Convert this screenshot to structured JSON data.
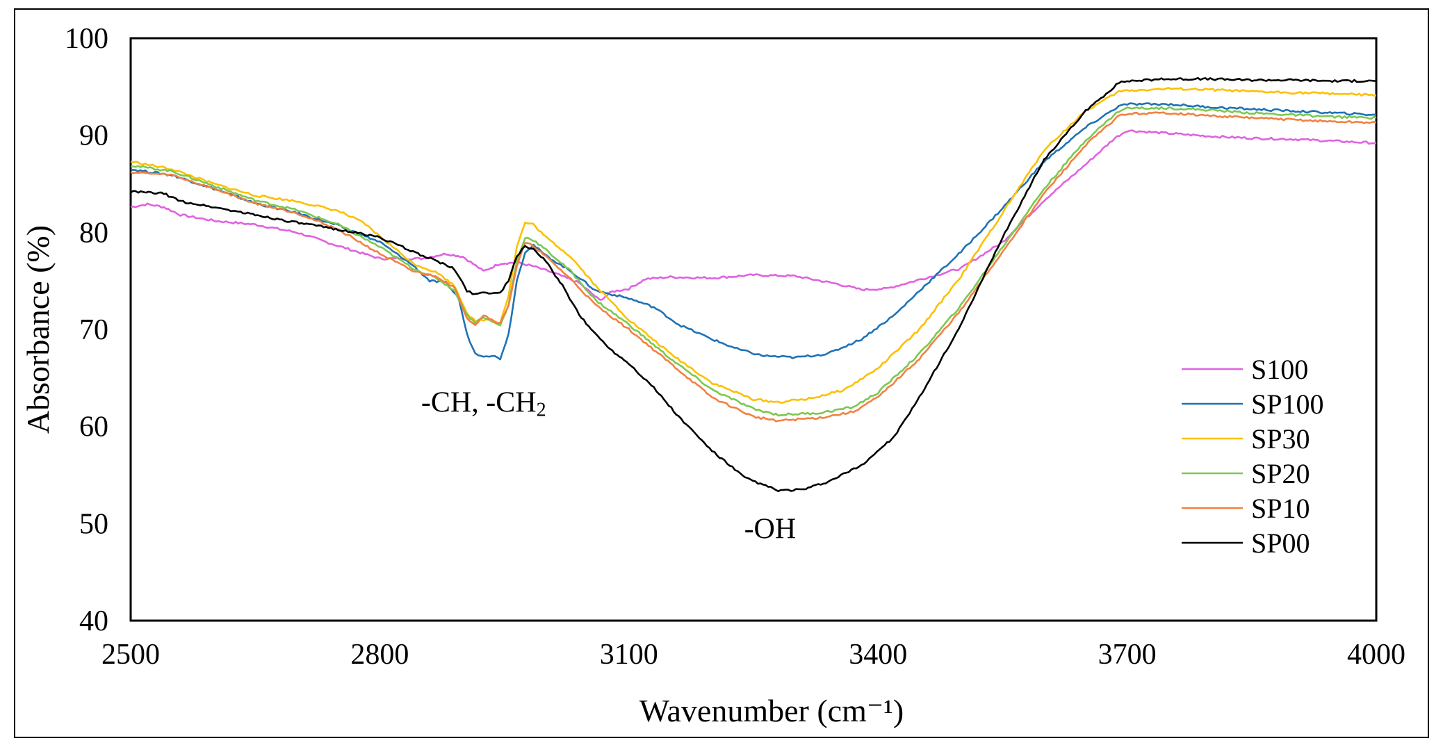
{
  "chart_data": {
    "type": "line",
    "title": "",
    "xlabel": "Wavenumber (cm⁻¹)",
    "ylabel": "Absorbance (%)",
    "xlim": [
      2500,
      4000
    ],
    "ylim": [
      40,
      100
    ],
    "xticks": [
      "2500",
      "2800",
      "3100",
      "3400",
      "3700",
      "4000"
    ],
    "yticks": [
      "40",
      "50",
      "60",
      "70",
      "80",
      "90",
      "100"
    ],
    "legend_position": "right",
    "annotations": [
      {
        "text": "-CH, -CH",
        "sub": "2",
        "x": 2925,
        "y": 61.5
      },
      {
        "text": "-OH",
        "x": 3270,
        "y": 48.5
      }
    ],
    "series": [
      {
        "name": "S100",
        "color": "#e062e0",
        "points": [
          [
            2500,
            82.6
          ],
          [
            2520,
            82.9
          ],
          [
            2540,
            82.6
          ],
          [
            2560,
            81.8
          ],
          [
            2600,
            81.2
          ],
          [
            2650,
            80.8
          ],
          [
            2700,
            80.0
          ],
          [
            2750,
            78.6
          ],
          [
            2800,
            77.3
          ],
          [
            2850,
            77.3
          ],
          [
            2880,
            77.8
          ],
          [
            2900,
            77.5
          ],
          [
            2925,
            76.0
          ],
          [
            2945,
            76.8
          ],
          [
            2965,
            76.9
          ],
          [
            2985,
            76.5
          ],
          [
            3010,
            75.8
          ],
          [
            3040,
            74.8
          ],
          [
            3065,
            73.0
          ],
          [
            3080,
            73.9
          ],
          [
            3100,
            74.2
          ],
          [
            3120,
            75.2
          ],
          [
            3150,
            75.4
          ],
          [
            3200,
            75.3
          ],
          [
            3250,
            75.6
          ],
          [
            3300,
            75.5
          ],
          [
            3350,
            74.7
          ],
          [
            3380,
            74.1
          ],
          [
            3410,
            74.2
          ],
          [
            3440,
            74.9
          ],
          [
            3500,
            76.3
          ],
          [
            3550,
            79.0
          ],
          [
            3600,
            83.3
          ],
          [
            3650,
            87.0
          ],
          [
            3685,
            89.7
          ],
          [
            3700,
            90.5
          ],
          [
            3750,
            90.2
          ],
          [
            3800,
            89.9
          ],
          [
            3850,
            89.7
          ],
          [
            3900,
            89.6
          ],
          [
            3950,
            89.4
          ],
          [
            4000,
            89.2
          ]
        ]
      },
      {
        "name": "SP100",
        "color": "#1f72b5",
        "points": [
          [
            2500,
            86.5
          ],
          [
            2550,
            85.9
          ],
          [
            2600,
            84.5
          ],
          [
            2650,
            83.0
          ],
          [
            2700,
            82.0
          ],
          [
            2750,
            80.7
          ],
          [
            2800,
            79.0
          ],
          [
            2840,
            76.6
          ],
          [
            2860,
            75.0
          ],
          [
            2880,
            74.8
          ],
          [
            2895,
            73.2
          ],
          [
            2905,
            69.5
          ],
          [
            2915,
            67.5
          ],
          [
            2925,
            67.3
          ],
          [
            2935,
            67.3
          ],
          [
            2945,
            67.0
          ],
          [
            2955,
            69.5
          ],
          [
            2965,
            75.0
          ],
          [
            2975,
            78.0
          ],
          [
            2985,
            78.7
          ],
          [
            3000,
            77.6
          ],
          [
            3030,
            76.0
          ],
          [
            3060,
            74.0
          ],
          [
            3080,
            73.6
          ],
          [
            3100,
            73.2
          ],
          [
            3130,
            72.3
          ],
          [
            3160,
            70.5
          ],
          [
            3200,
            69.0
          ],
          [
            3230,
            68.0
          ],
          [
            3260,
            67.3
          ],
          [
            3300,
            67.1
          ],
          [
            3340,
            67.5
          ],
          [
            3380,
            69.0
          ],
          [
            3420,
            71.5
          ],
          [
            3450,
            74.0
          ],
          [
            3500,
            78.0
          ],
          [
            3550,
            82.5
          ],
          [
            3600,
            87.3
          ],
          [
            3650,
            90.8
          ],
          [
            3690,
            93.0
          ],
          [
            3700,
            93.2
          ],
          [
            3750,
            93.2
          ],
          [
            3800,
            92.9
          ],
          [
            3850,
            92.7
          ],
          [
            3900,
            92.5
          ],
          [
            3950,
            92.3
          ],
          [
            4000,
            92.1
          ]
        ]
      },
      {
        "name": "SP30",
        "color": "#fcc000",
        "points": [
          [
            2500,
            87.3
          ],
          [
            2550,
            86.5
          ],
          [
            2600,
            85.0
          ],
          [
            2650,
            83.8
          ],
          [
            2700,
            83.2
          ],
          [
            2750,
            82.2
          ],
          [
            2780,
            81.0
          ],
          [
            2800,
            79.6
          ],
          [
            2840,
            76.8
          ],
          [
            2870,
            75.8
          ],
          [
            2890,
            74.5
          ],
          [
            2905,
            71.7
          ],
          [
            2915,
            70.8
          ],
          [
            2925,
            71.0
          ],
          [
            2935,
            71.0
          ],
          [
            2945,
            70.7
          ],
          [
            2955,
            73.5
          ],
          [
            2965,
            78.5
          ],
          [
            2975,
            81.0
          ],
          [
            2985,
            80.8
          ],
          [
            3000,
            79.5
          ],
          [
            3030,
            77.5
          ],
          [
            3060,
            74.5
          ],
          [
            3100,
            71.0
          ],
          [
            3150,
            67.5
          ],
          [
            3200,
            64.5
          ],
          [
            3250,
            62.8
          ],
          [
            3280,
            62.5
          ],
          [
            3320,
            62.9
          ],
          [
            3360,
            63.8
          ],
          [
            3400,
            66.0
          ],
          [
            3450,
            70.0
          ],
          [
            3500,
            75.5
          ],
          [
            3550,
            82.0
          ],
          [
            3600,
            88.5
          ],
          [
            3650,
            92.5
          ],
          [
            3690,
            94.5
          ],
          [
            3700,
            94.6
          ],
          [
            3750,
            94.8
          ],
          [
            3800,
            94.7
          ],
          [
            3850,
            94.5
          ],
          [
            3900,
            94.4
          ],
          [
            3950,
            94.3
          ],
          [
            4000,
            94.1
          ]
        ]
      },
      {
        "name": "SP20",
        "color": "#7bc850",
        "points": [
          [
            2500,
            86.9
          ],
          [
            2550,
            86.3
          ],
          [
            2600,
            84.8
          ],
          [
            2650,
            83.3
          ],
          [
            2700,
            82.3
          ],
          [
            2750,
            80.8
          ],
          [
            2800,
            78.5
          ],
          [
            2840,
            76.3
          ],
          [
            2870,
            75.2
          ],
          [
            2890,
            74.0
          ],
          [
            2905,
            71.5
          ],
          [
            2915,
            70.7
          ],
          [
            2925,
            71.3
          ],
          [
            2935,
            70.8
          ],
          [
            2945,
            70.4
          ],
          [
            2955,
            72.5
          ],
          [
            2965,
            77.0
          ],
          [
            2975,
            79.5
          ],
          [
            2985,
            79.2
          ],
          [
            3000,
            78.2
          ],
          [
            3030,
            76.0
          ],
          [
            3060,
            73.0
          ],
          [
            3100,
            70.5
          ],
          [
            3150,
            67.0
          ],
          [
            3200,
            63.8
          ],
          [
            3250,
            61.8
          ],
          [
            3280,
            61.2
          ],
          [
            3330,
            61.4
          ],
          [
            3370,
            62.0
          ],
          [
            3400,
            63.5
          ],
          [
            3450,
            67.5
          ],
          [
            3500,
            72.5
          ],
          [
            3550,
            78.5
          ],
          [
            3600,
            84.5
          ],
          [
            3650,
            89.5
          ],
          [
            3690,
            92.5
          ],
          [
            3700,
            92.8
          ],
          [
            3750,
            92.8
          ],
          [
            3800,
            92.6
          ],
          [
            3850,
            92.3
          ],
          [
            3900,
            92.1
          ],
          [
            3950,
            91.9
          ],
          [
            4000,
            91.8
          ]
        ]
      },
      {
        "name": "SP10",
        "color": "#f28141",
        "points": [
          [
            2500,
            86.2
          ],
          [
            2550,
            85.9
          ],
          [
            2600,
            84.5
          ],
          [
            2650,
            83.0
          ],
          [
            2700,
            82.0
          ],
          [
            2750,
            80.3
          ],
          [
            2800,
            77.8
          ],
          [
            2840,
            76.0
          ],
          [
            2870,
            75.4
          ],
          [
            2890,
            74.3
          ],
          [
            2905,
            71.2
          ],
          [
            2915,
            70.5
          ],
          [
            2925,
            71.5
          ],
          [
            2935,
            71.0
          ],
          [
            2945,
            70.6
          ],
          [
            2955,
            72.5
          ],
          [
            2965,
            76.5
          ],
          [
            2975,
            78.9
          ],
          [
            2985,
            78.6
          ],
          [
            3000,
            77.5
          ],
          [
            3030,
            75.2
          ],
          [
            3060,
            72.5
          ],
          [
            3100,
            70.0
          ],
          [
            3150,
            66.5
          ],
          [
            3200,
            63.0
          ],
          [
            3250,
            61.0
          ],
          [
            3280,
            60.6
          ],
          [
            3330,
            60.9
          ],
          [
            3370,
            61.5
          ],
          [
            3400,
            63.0
          ],
          [
            3450,
            67.0
          ],
          [
            3500,
            72.0
          ],
          [
            3550,
            78.0
          ],
          [
            3600,
            84.0
          ],
          [
            3650,
            89.0
          ],
          [
            3690,
            92.0
          ],
          [
            3700,
            92.2
          ],
          [
            3750,
            92.3
          ],
          [
            3800,
            92.0
          ],
          [
            3850,
            91.8
          ],
          [
            3900,
            91.6
          ],
          [
            3950,
            91.4
          ],
          [
            4000,
            91.3
          ]
        ]
      },
      {
        "name": "SP00",
        "color": "#000000",
        "points": [
          [
            2500,
            84.2
          ],
          [
            2540,
            84.0
          ],
          [
            2560,
            83.2
          ],
          [
            2600,
            82.6
          ],
          [
            2650,
            81.8
          ],
          [
            2700,
            81.0
          ],
          [
            2750,
            80.3
          ],
          [
            2800,
            79.5
          ],
          [
            2840,
            78.0
          ],
          [
            2870,
            77.0
          ],
          [
            2890,
            76.2
          ],
          [
            2905,
            74.0
          ],
          [
            2915,
            73.6
          ],
          [
            2925,
            73.9
          ],
          [
            2935,
            73.7
          ],
          [
            2945,
            73.8
          ],
          [
            2955,
            75.0
          ],
          [
            2965,
            77.5
          ],
          [
            2975,
            78.6
          ],
          [
            2985,
            78.3
          ],
          [
            3000,
            77.0
          ],
          [
            3020,
            74.5
          ],
          [
            3040,
            71.5
          ],
          [
            3060,
            69.5
          ],
          [
            3080,
            67.8
          ],
          [
            3100,
            66.5
          ],
          [
            3130,
            64.0
          ],
          [
            3160,
            61.0
          ],
          [
            3200,
            57.5
          ],
          [
            3240,
            54.7
          ],
          [
            3280,
            53.4
          ],
          [
            3310,
            53.5
          ],
          [
            3340,
            54.3
          ],
          [
            3380,
            56.0
          ],
          [
            3420,
            59.0
          ],
          [
            3450,
            63.0
          ],
          [
            3500,
            70.5
          ],
          [
            3550,
            79.5
          ],
          [
            3600,
            87.5
          ],
          [
            3650,
            92.5
          ],
          [
            3690,
            95.4
          ],
          [
            3700,
            95.6
          ],
          [
            3750,
            95.8
          ],
          [
            3800,
            95.8
          ],
          [
            3850,
            95.7
          ],
          [
            3900,
            95.7
          ],
          [
            3950,
            95.6
          ],
          [
            4000,
            95.6
          ]
        ]
      }
    ]
  }
}
